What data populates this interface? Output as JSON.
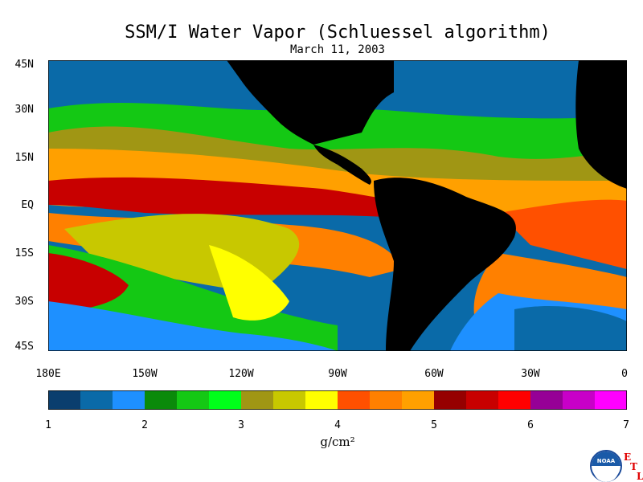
{
  "title": "SSM/I Water Vapor (Schluessel algorithm)",
  "subtitle": "March 11, 2003",
  "y_ticks": [
    "45N",
    "30N",
    "15N",
    "EQ",
    "15S",
    "30S",
    "45S"
  ],
  "x_ticks": [
    "180E",
    "150W",
    "120W",
    "90W",
    "60W",
    "30W",
    "0"
  ],
  "colorbar": {
    "ticks": [
      "1",
      "2",
      "3",
      "4",
      "5",
      "6",
      "7"
    ],
    "units": "g/cm²",
    "colors": [
      "#0a3e6e",
      "#0a6aa8",
      "#1e90ff",
      "#0a8a0a",
      "#14c814",
      "#00ff1a",
      "#a09614",
      "#c8c800",
      "#ffff00",
      "#ff5000",
      "#ff8000",
      "#ffa000",
      "#960000",
      "#c80000",
      "#ff0000",
      "#960096",
      "#c800c8",
      "#ff00ff"
    ]
  },
  "map_colors": {
    "land": "#000000",
    "ocean_base": "#14c814",
    "very_wet": "#c80000",
    "wet": "#ff8000",
    "moist": "#c8c800",
    "dry": "#1e90ff",
    "very_dry": "#0a6aa8",
    "driest": "#0a3e6e"
  },
  "logo": {
    "text": "NOAA",
    "letters": [
      "E",
      "T",
      "L"
    ]
  }
}
